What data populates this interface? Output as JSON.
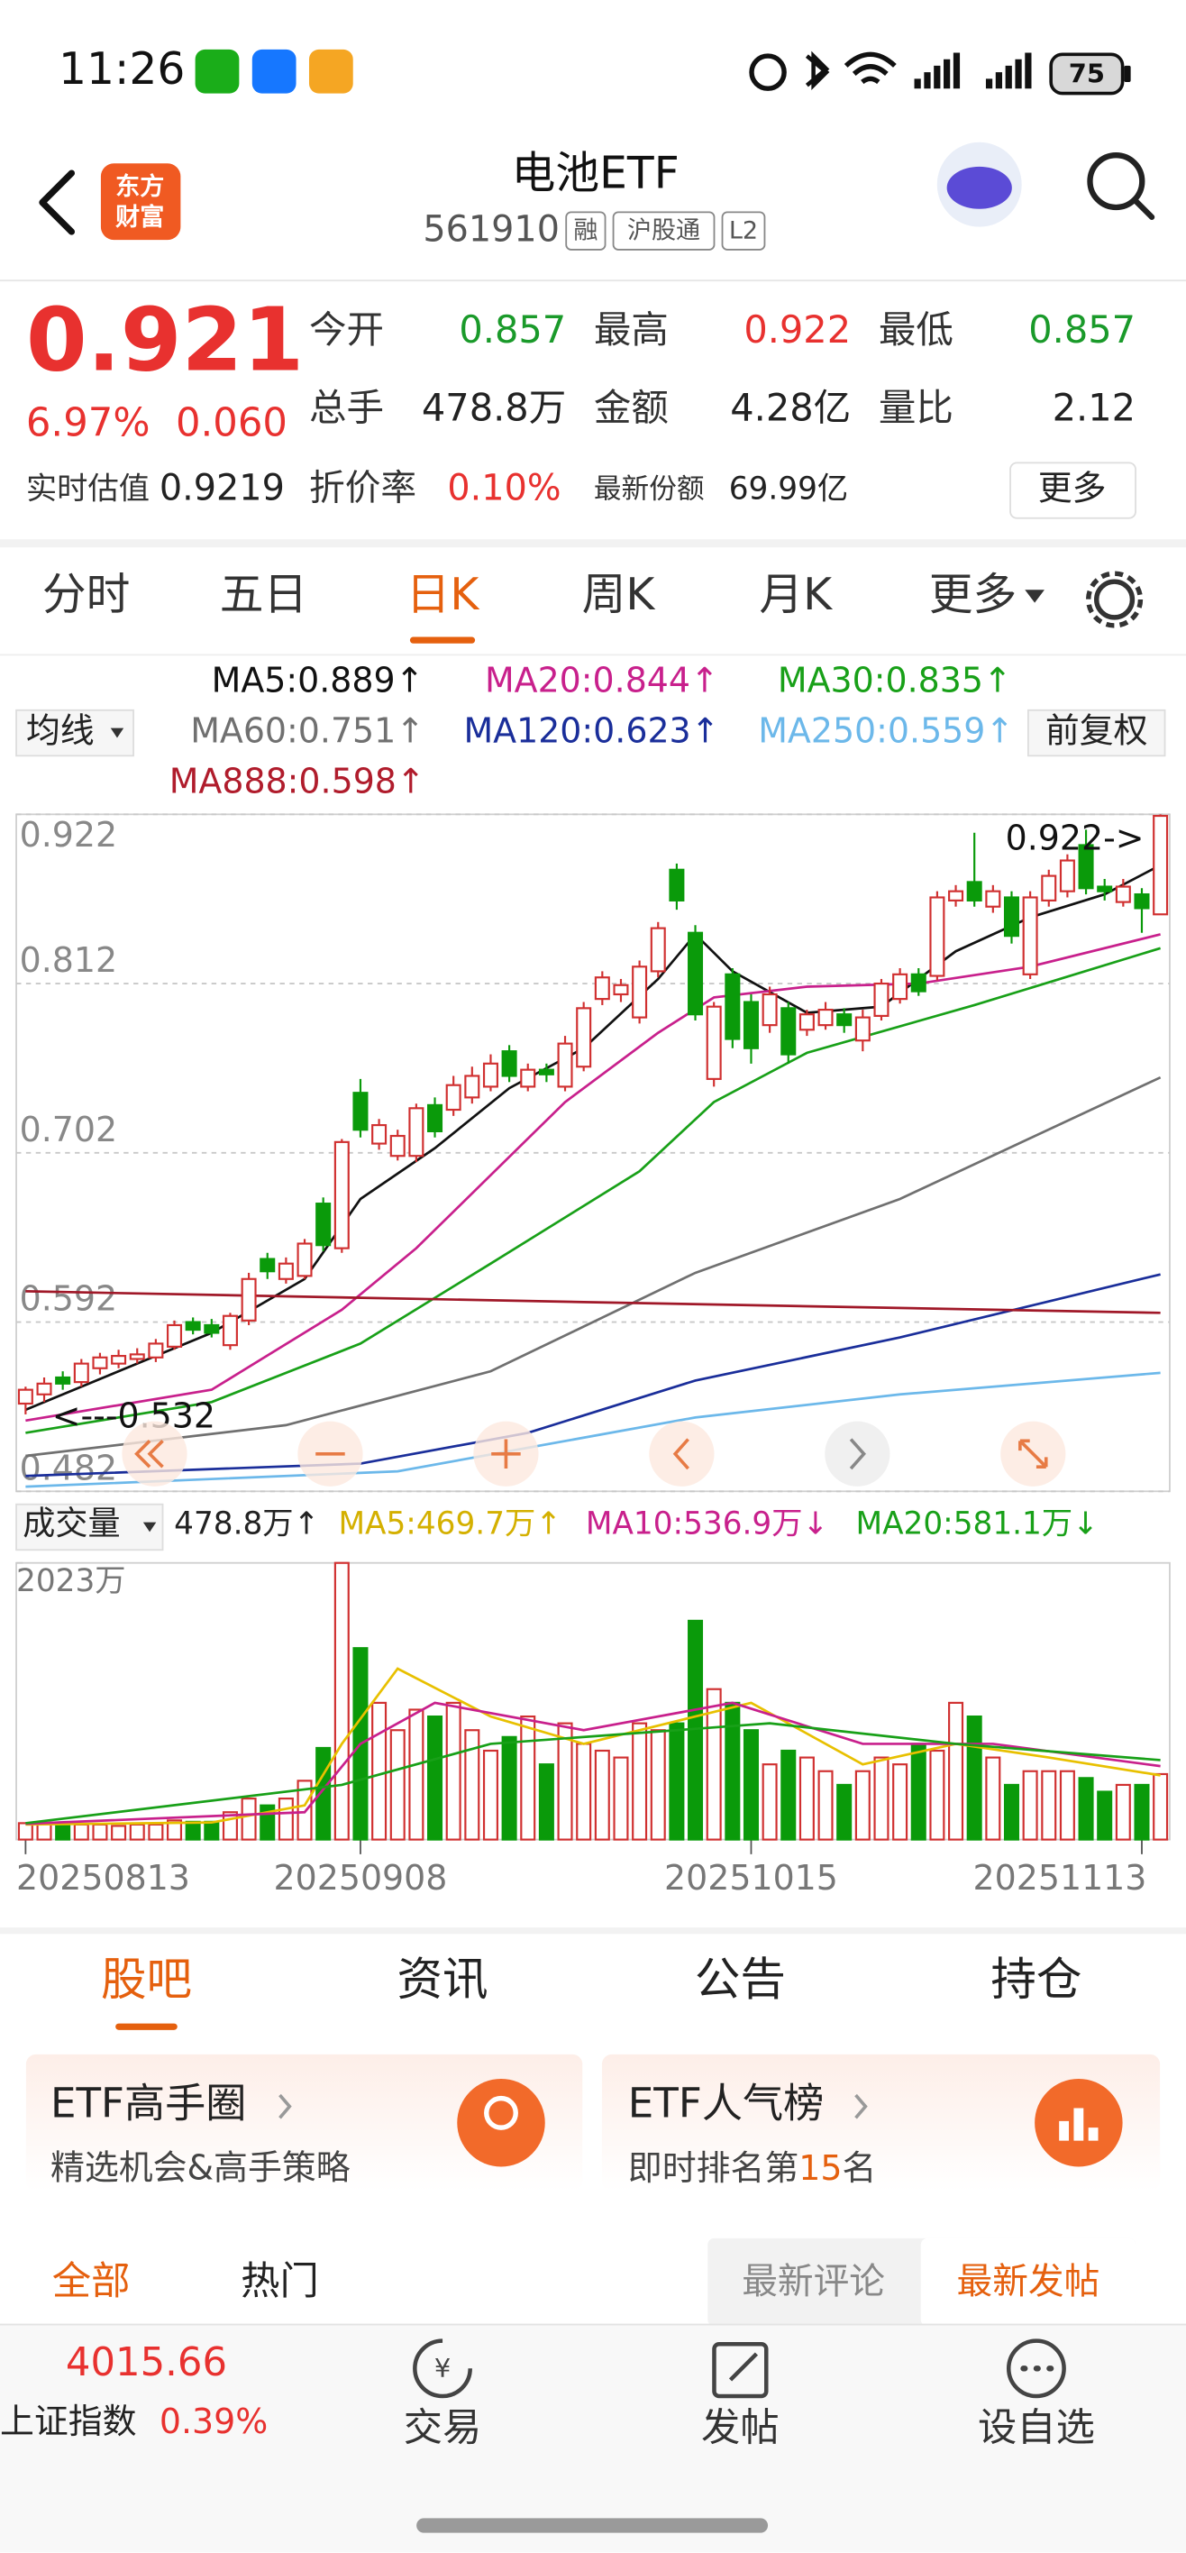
{
  "status": {
    "time": "11:26",
    "battery": "75"
  },
  "header": {
    "logo": [
      "东方",
      "财富"
    ],
    "title": "电池ETF",
    "code": "561910",
    "tags": [
      "融",
      "沪股通",
      "L2"
    ]
  },
  "quote": {
    "price": "0.921",
    "change_pct": "6.97%",
    "change": "0.060",
    "color": "#e8312f",
    "stats": [
      [
        {
          "label": "今开",
          "value": "0.857",
          "color": "#1a9a2a"
        },
        {
          "label": "最高",
          "value": "0.922",
          "color": "#e8312f"
        },
        {
          "label": "最低",
          "value": "0.857",
          "color": "#1a9a2a"
        }
      ],
      [
        {
          "label": "总手",
          "value": "478.8万",
          "color": "#222222"
        },
        {
          "label": "金额",
          "value": "4.28亿",
          "color": "#222222"
        },
        {
          "label": "量比",
          "value": "2.12",
          "color": "#222222"
        }
      ]
    ],
    "estimate_label": "实时估值",
    "estimate": "0.9219",
    "premium_label": "折价率",
    "premium": "0.10%",
    "share_label": "最新份额",
    "share": "69.99亿",
    "more": "更多"
  },
  "tabs": [
    {
      "label": "分时"
    },
    {
      "label": "五日"
    },
    {
      "label": "日K",
      "selected": true
    },
    {
      "label": "周K"
    },
    {
      "label": "月K"
    },
    {
      "label": "更多"
    }
  ],
  "ma_legend": {
    "selector": "均线",
    "adjust": "前复权",
    "items": [
      {
        "text": "MA5:0.889↑",
        "color": "#111111"
      },
      {
        "text": "MA20:0.844↑",
        "color": "#c8208c"
      },
      {
        "text": "MA30:0.835↑",
        "color": "#18a018"
      },
      {
        "text": "MA60:0.751↑",
        "color": "#707070"
      },
      {
        "text": "MA120:0.623↑",
        "color": "#1a2e9a"
      },
      {
        "text": "MA250:0.559↑",
        "color": "#6cb8ea"
      },
      {
        "text": "MA888:0.598↑",
        "color": "#b01c2c"
      }
    ]
  },
  "volume_legend": {
    "selector": "成交量",
    "items": [
      {
        "text": "478.8万↑",
        "color": "#222222"
      },
      {
        "text": "MA5:469.7万↑",
        "color": "#d4b000"
      },
      {
        "text": "MA10:536.9万↓",
        "color": "#c8208c"
      },
      {
        "text": "MA20:581.1万↓",
        "color": "#18a018"
      }
    ]
  },
  "chart_data": [
    {
      "type": "candlestick",
      "up_color": "#d03030",
      "down_color": "#0a9a0a",
      "open": [
        0.539,
        0.545,
        0.556,
        0.553,
        0.562,
        0.565,
        0.568,
        0.569,
        0.576,
        0.592,
        0.59,
        0.577,
        0.593,
        0.633,
        0.62,
        0.622,
        0.669,
        0.64,
        0.741,
        0.708,
        0.7,
        0.7,
        0.733,
        0.73,
        0.738,
        0.745,
        0.768,
        0.745,
        0.756,
        0.745,
        0.758,
        0.802,
        0.805,
        0.79,
        0.82,
        0.886,
        0.845,
        0.75,
        0.818,
        0.8,
        0.785,
        0.796,
        0.782,
        0.785,
        0.792,
        0.775,
        0.791,
        0.802,
        0.818,
        0.817,
        0.866,
        0.878,
        0.862,
        0.868,
        0.818,
        0.866,
        0.872,
        0.902,
        0.875,
        0.865,
        0.87,
        0.857
      ],
      "high": [
        0.55,
        0.556,
        0.56,
        0.568,
        0.572,
        0.574,
        0.575,
        0.581,
        0.593,
        0.595,
        0.594,
        0.598,
        0.624,
        0.637,
        0.634,
        0.646,
        0.673,
        0.711,
        0.75,
        0.724,
        0.717,
        0.734,
        0.738,
        0.752,
        0.758,
        0.766,
        0.772,
        0.76,
        0.76,
        0.778,
        0.8,
        0.82,
        0.815,
        0.827,
        0.852,
        0.89,
        0.85,
        0.8,
        0.822,
        0.805,
        0.81,
        0.8,
        0.795,
        0.8,
        0.796,
        0.795,
        0.815,
        0.822,
        0.822,
        0.872,
        0.876,
        0.91,
        0.876,
        0.872,
        0.872,
        0.886,
        0.896,
        0.912,
        0.88,
        0.88,
        0.874,
        0.922
      ],
      "low": [
        0.532,
        0.54,
        0.548,
        0.55,
        0.558,
        0.562,
        0.565,
        0.566,
        0.574,
        0.584,
        0.582,
        0.574,
        0.59,
        0.62,
        0.617,
        0.62,
        0.638,
        0.637,
        0.712,
        0.704,
        0.697,
        0.696,
        0.712,
        0.726,
        0.734,
        0.742,
        0.748,
        0.742,
        0.748,
        0.742,
        0.755,
        0.798,
        0.8,
        0.786,
        0.816,
        0.86,
        0.788,
        0.745,
        0.77,
        0.76,
        0.78,
        0.76,
        0.778,
        0.782,
        0.78,
        0.768,
        0.788,
        0.799,
        0.804,
        0.814,
        0.862,
        0.862,
        0.858,
        0.838,
        0.815,
        0.862,
        0.868,
        0.87,
        0.866,
        0.862,
        0.845,
        0.857
      ],
      "close": [
        0.548,
        0.552,
        0.552,
        0.565,
        0.569,
        0.57,
        0.571,
        0.578,
        0.59,
        0.587,
        0.585,
        0.596,
        0.62,
        0.625,
        0.63,
        0.643,
        0.642,
        0.709,
        0.717,
        0.72,
        0.713,
        0.731,
        0.716,
        0.746,
        0.752,
        0.76,
        0.752,
        0.756,
        0.753,
        0.773,
        0.796,
        0.816,
        0.811,
        0.823,
        0.848,
        0.866,
        0.792,
        0.797,
        0.776,
        0.77,
        0.805,
        0.766,
        0.792,
        0.795,
        0.785,
        0.79,
        0.812,
        0.818,
        0.807,
        0.868,
        0.872,
        0.866,
        0.872,
        0.843,
        0.868,
        0.882,
        0.892,
        0.874,
        0.872,
        0.875,
        0.861,
        0.921
      ],
      "series": [
        {
          "color": "#111111",
          "x": [
            0,
            5,
            10,
            15,
            18,
            22,
            26,
            30,
            34,
            36,
            38,
            42,
            46,
            50,
            54,
            58,
            61
          ],
          "values": [
            0.535,
            0.56,
            0.585,
            0.62,
            0.672,
            0.705,
            0.744,
            0.77,
            0.815,
            0.844,
            0.82,
            0.793,
            0.797,
            0.833,
            0.855,
            0.87,
            0.889
          ]
        },
        {
          "color": "#c8208c",
          "x": [
            0,
            10,
            17,
            21,
            29,
            34,
            37,
            42,
            48,
            54,
            61
          ],
          "values": [
            0.528,
            0.548,
            0.6,
            0.64,
            0.735,
            0.78,
            0.803,
            0.81,
            0.812,
            0.823,
            0.844
          ]
        },
        {
          "color": "#18a018",
          "x": [
            0,
            10,
            18,
            25,
            33,
            37,
            42,
            51,
            61
          ],
          "values": [
            0.52,
            0.54,
            0.578,
            0.63,
            0.69,
            0.735,
            0.767,
            0.798,
            0.835
          ]
        },
        {
          "color": "#707070",
          "x": [
            0,
            14,
            25,
            36,
            47,
            61
          ],
          "values": [
            0.505,
            0.525,
            0.56,
            0.624,
            0.672,
            0.751
          ]
        },
        {
          "color": "#1a2e9a",
          "x": [
            0,
            18,
            27,
            36,
            47,
            61
          ],
          "values": [
            0.492,
            0.5,
            0.52,
            0.554,
            0.582,
            0.623
          ]
        },
        {
          "color": "#6cb8ea",
          "x": [
            0,
            20,
            36,
            47,
            61
          ],
          "values": [
            0.485,
            0.495,
            0.53,
            0.545,
            0.559
          ]
        },
        {
          "color": "#a01828",
          "x": [
            0,
            30,
            61
          ],
          "values": [
            0.612,
            0.605,
            0.598
          ]
        }
      ],
      "ylim": [
        0.482,
        0.922
      ],
      "yticks": [
        0.922,
        0.812,
        0.702,
        0.592,
        0.482
      ],
      "annotations": [
        "0.922->",
        "<---0.532"
      ],
      "grid": true
    },
    {
      "type": "bar",
      "categories": [
        "20250813",
        null,
        null,
        null,
        null,
        null,
        null,
        null,
        null,
        null,
        null,
        null,
        null,
        null,
        null,
        null,
        null,
        null,
        "20250908",
        null,
        null,
        null,
        null,
        null,
        null,
        null,
        null,
        null,
        null,
        null,
        null,
        null,
        null,
        null,
        null,
        null,
        null,
        null,
        null,
        "20251015",
        null,
        null,
        null,
        null,
        null,
        null,
        null,
        null,
        null,
        null,
        null,
        null,
        null,
        null,
        null,
        null,
        null,
        null,
        null,
        null,
        "20251113",
        null
      ],
      "values": [
        120,
        120,
        100,
        110,
        110,
        100,
        110,
        110,
        140,
        130,
        130,
        200,
        300,
        250,
        300,
        430,
        670,
        2023,
        1400,
        1000,
        800,
        950,
        900,
        1000,
        800,
        650,
        750,
        900,
        550,
        850,
        700,
        650,
        600,
        850,
        800,
        850,
        1600,
        1100,
        1000,
        800,
        550,
        650,
        600,
        500,
        400,
        500,
        600,
        550,
        700,
        650,
        1000,
        900,
        600,
        400,
        500,
        500,
        500,
        450,
        350,
        400,
        400,
        478.8
      ],
      "series": [
        {
          "color": "#e8c000",
          "x": [
            0,
            10,
            15,
            17,
            20,
            25,
            30,
            36,
            39,
            45,
            50,
            55,
            61
          ],
          "values": [
            110,
            125,
            250,
            700,
            1250,
            900,
            700,
            900,
            1000,
            550,
            700,
            600,
            469.7
          ]
        },
        {
          "color": "#c8208c",
          "x": [
            0,
            15,
            18,
            22,
            30,
            38,
            45,
            52,
            61
          ],
          "values": [
            115,
            200,
            700,
            1000,
            800,
            1000,
            700,
            700,
            536.9
          ]
        },
        {
          "color": "#18a018",
          "x": [
            0,
            17,
            25,
            35,
            40,
            50,
            61
          ],
          "values": [
            120,
            400,
            700,
            800,
            850,
            700,
            581.1
          ]
        }
      ],
      "ylim": [
        0,
        2023
      ],
      "yticks": [
        {
          "value": 2023,
          "label": "2023万"
        }
      ]
    }
  ],
  "sections": [
    {
      "label": "股吧",
      "selected": true
    },
    {
      "label": "资讯"
    },
    {
      "label": "公告"
    },
    {
      "label": "持仓"
    }
  ],
  "cards": [
    {
      "title": "ETF高手圈",
      "subtitle": "精选机会&高手策略"
    },
    {
      "title": "ETF人气榜",
      "subtitle_prefix": "即时排名第",
      "rank": "15",
      "subtitle_suffix": "名"
    }
  ],
  "filters": [
    {
      "label": "全部",
      "selected": true
    },
    {
      "label": "热门"
    }
  ],
  "sort": [
    {
      "label": "最新评论"
    },
    {
      "label": "最新发帖",
      "selected": true
    }
  ],
  "bottom_nav": {
    "index_value": "4015.66",
    "index_name": "上证指数",
    "index_change": "0.39%",
    "items": [
      "交易",
      "发帖",
      "设自选"
    ]
  }
}
